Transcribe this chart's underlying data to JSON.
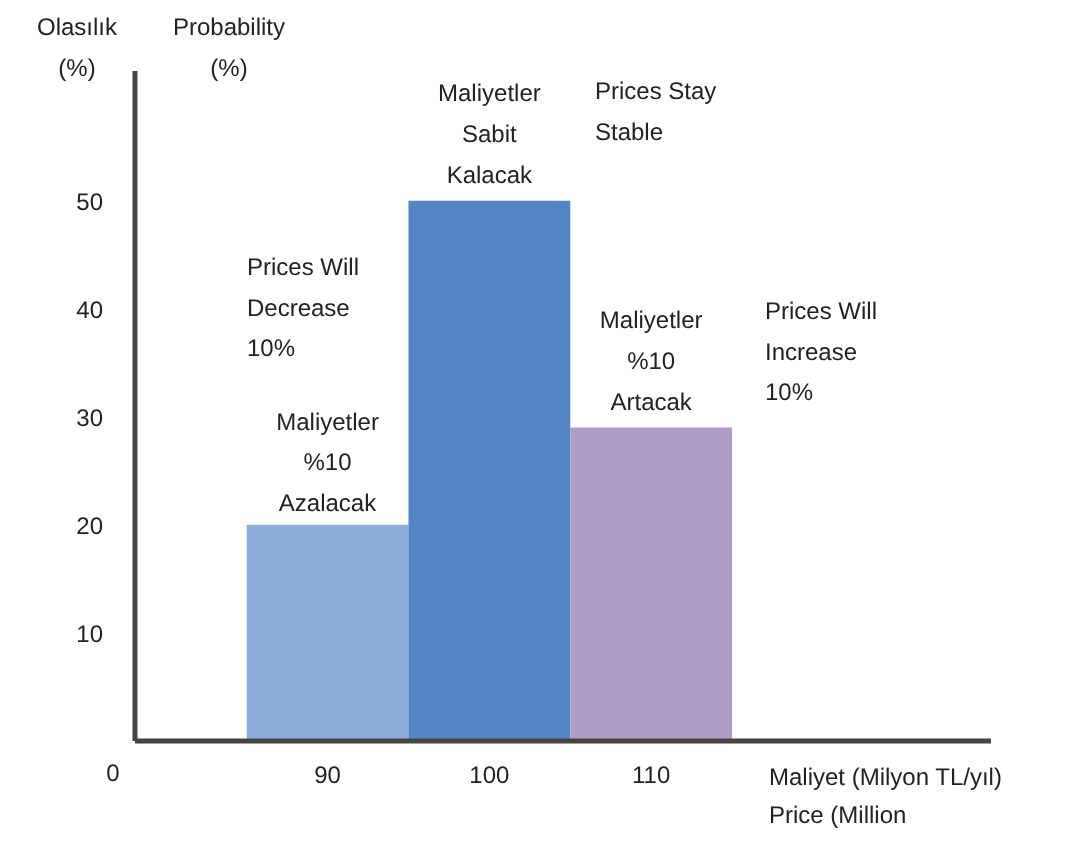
{
  "chart_data": {
    "type": "bar",
    "ylabel": "Olasılık (%)",
    "xlabel": "Maliyet (Milyon TL/yıl)",
    "categories": [
      "90",
      "100",
      "110"
    ],
    "values": [
      20,
      50,
      29
    ],
    "colors": [
      "#8eaddb",
      "#5486c6",
      "#ae9ec6"
    ],
    "ylim": [
      0,
      62
    ],
    "yticks": [
      10,
      20,
      30,
      40,
      50
    ],
    "grid": false,
    "annotations": [
      {
        "text": "Maliyetler\nSabit\nKalacak",
        "x": "100",
        "y": 50
      },
      {
        "text": "Maliyetler\n%10\nAzalacak",
        "x": "90",
        "y": 20
      },
      {
        "text": "Maliyetler\n%10\nArtacak",
        "x": "110",
        "y": 29
      },
      "Prices Stay\nStable",
      "Prices Will\nDecrease\n10%",
      "Prices Will\nIncrease\n10%",
      "Probability\n(%)",
      "Price (Million",
      "0"
    ]
  }
}
